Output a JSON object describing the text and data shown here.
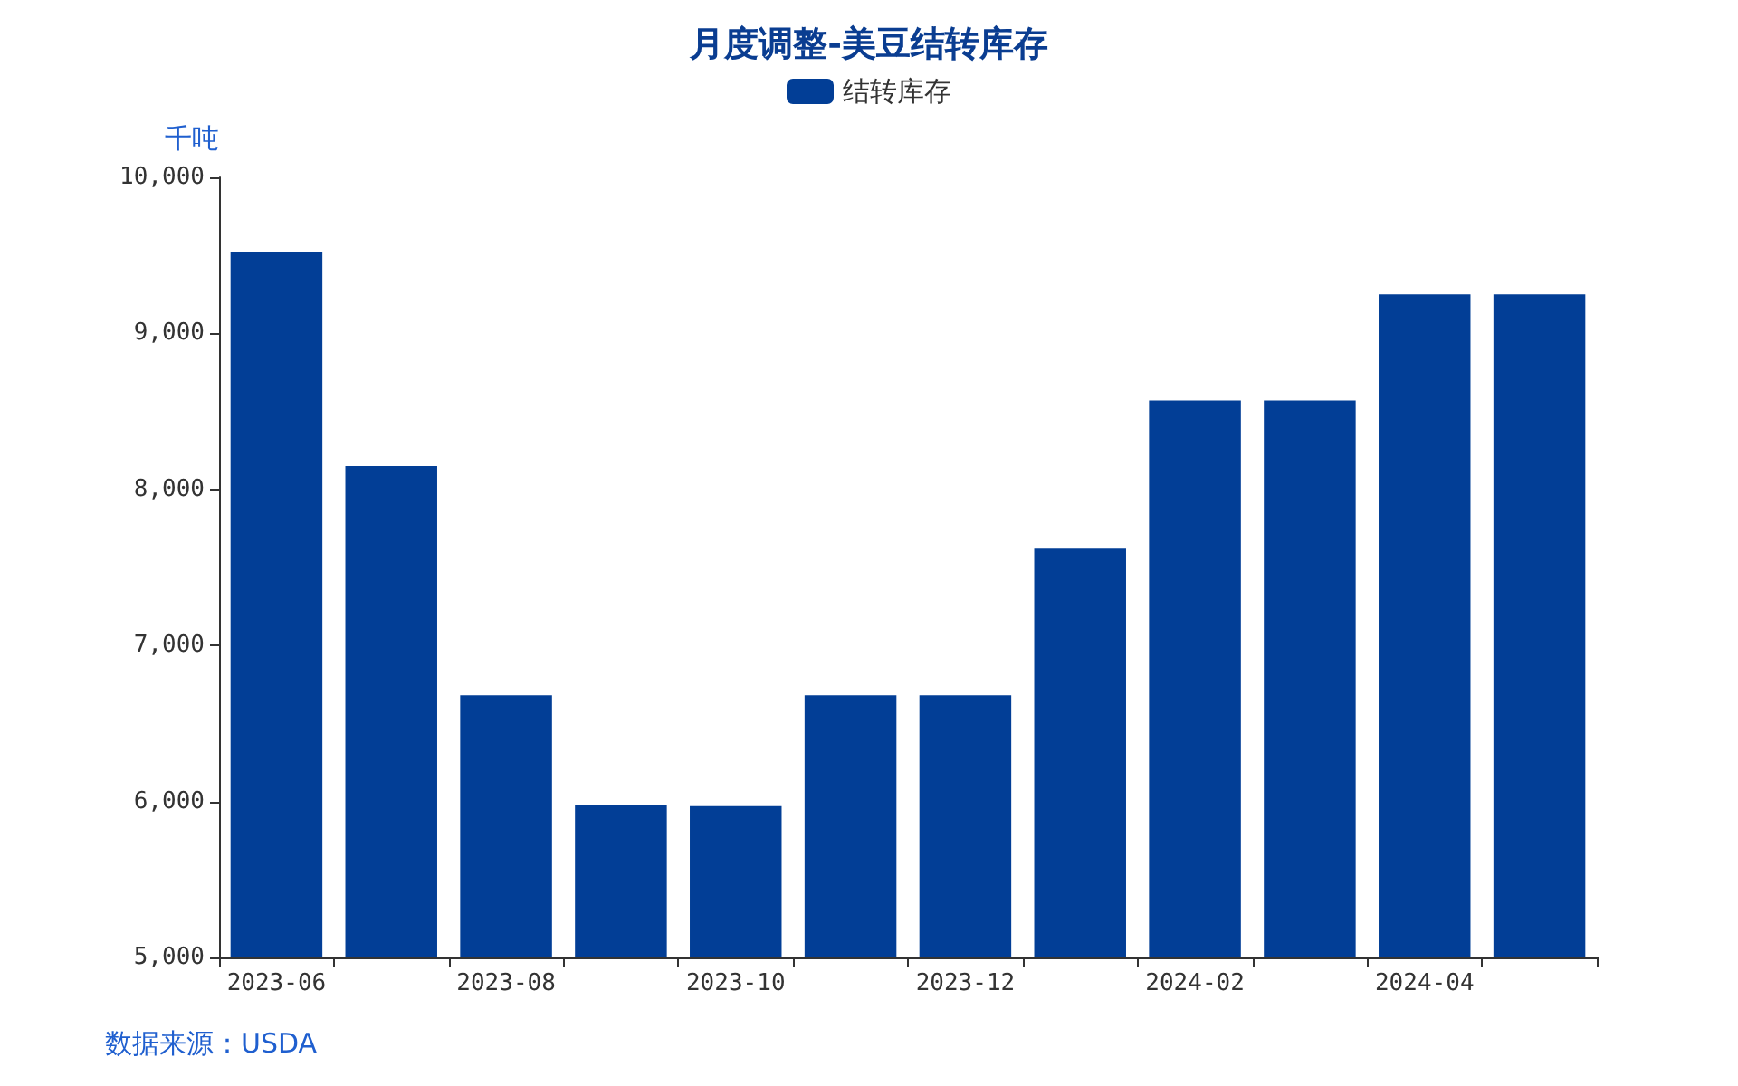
{
  "chart_data": {
    "type": "bar",
    "title": "月度调整-美豆结转库存",
    "ylabel": "千吨",
    "annotations": [
      "数据来源：USDA"
    ],
    "categories": [
      "2023-06",
      null,
      "2023-08",
      null,
      "2023-10",
      null,
      "2023-12",
      null,
      "2024-02",
      null,
      "2024-04",
      null
    ],
    "series": [
      {
        "name": "结转库存",
        "color": "#023e96",
        "values": [
          9520,
          8150,
          6680,
          5980,
          5970,
          6680,
          6680,
          7620,
          8570,
          8570,
          9250,
          9250
        ]
      }
    ],
    "ylim": [
      5000,
      10000
    ],
    "yticks": [
      {
        "value": 5000,
        "label": "5,000"
      },
      {
        "value": 6000,
        "label": "6,000"
      },
      {
        "value": 7000,
        "label": "7,000"
      },
      {
        "value": 8000,
        "label": "8,000"
      },
      {
        "value": 9000,
        "label": "9,000"
      },
      {
        "value": 10000,
        "label": "10,000"
      }
    ],
    "grid": false,
    "legend": "top"
  }
}
